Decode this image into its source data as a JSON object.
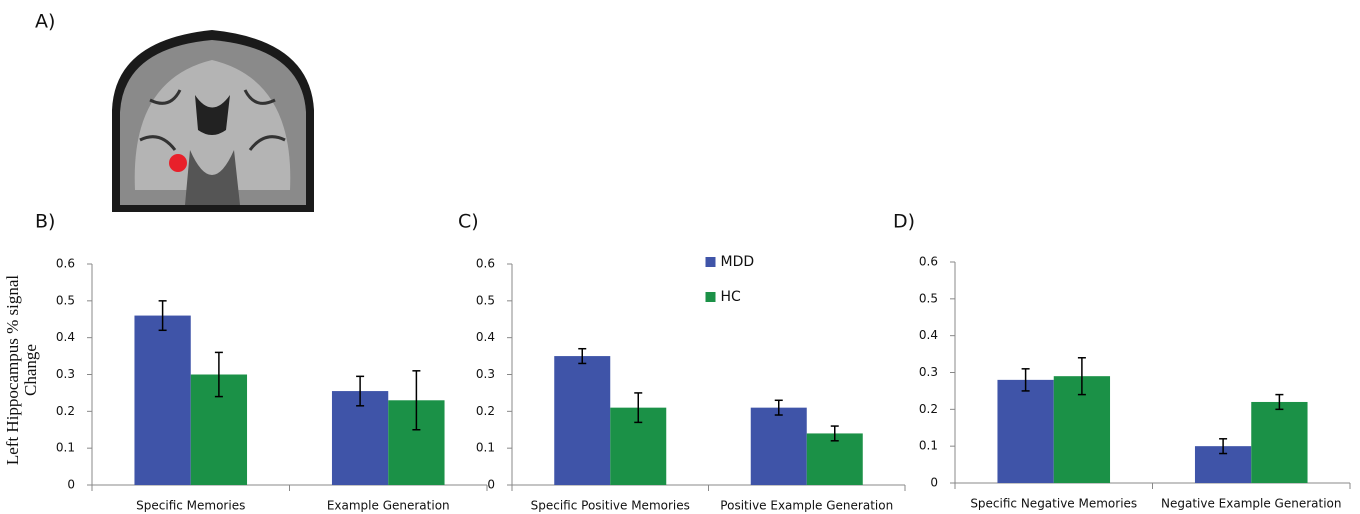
{
  "panel_a": {
    "label": "A)"
  },
  "chart_data": [
    {
      "type": "bar",
      "title": "B)",
      "y_label": "Left Hippocampus % signal Change",
      "categories": [
        "Specific Memories",
        "Example Generation"
      ],
      "series": [
        {
          "name": "MDD",
          "color": "#3f54a8",
          "values": [
            0.46,
            0.255
          ],
          "errors": [
            0.04,
            0.04
          ]
        },
        {
          "name": "HC",
          "color": "#1b9147",
          "values": [
            0.3,
            0.23
          ],
          "errors": [
            0.06,
            0.08
          ]
        }
      ],
      "ylim": [
        0,
        0.6
      ],
      "yticks": [
        0,
        0.1,
        0.2,
        0.3,
        0.4,
        0.5,
        0.6
      ]
    },
    {
      "type": "bar",
      "title": "C)",
      "legend": "top-center",
      "categories": [
        "Specific Positive Memories",
        "Positive Example Generation"
      ],
      "series": [
        {
          "name": "MDD",
          "color": "#3f54a8",
          "values": [
            0.35,
            0.21
          ],
          "errors": [
            0.02,
            0.02
          ]
        },
        {
          "name": "HC",
          "color": "#1b9147",
          "values": [
            0.21,
            0.14
          ],
          "errors": [
            0.04,
            0.02
          ]
        }
      ],
      "ylim": [
        0,
        0.6
      ],
      "yticks": [
        0,
        0.1,
        0.2,
        0.3,
        0.4,
        0.5,
        0.6
      ]
    },
    {
      "type": "bar",
      "title": "D)",
      "categories": [
        "Specific Negative Memories",
        "Negative Example Generation"
      ],
      "series": [
        {
          "name": "MDD",
          "color": "#3f54a8",
          "values": [
            0.28,
            0.1
          ],
          "errors": [
            0.03,
            0.02
          ]
        },
        {
          "name": "HC",
          "color": "#1b9147",
          "values": [
            0.29,
            0.22
          ],
          "errors": [
            0.05,
            0.02
          ]
        }
      ],
      "ylim": [
        0,
        0.6
      ],
      "yticks": [
        0,
        0.1,
        0.2,
        0.3,
        0.4,
        0.5,
        0.6
      ]
    }
  ]
}
